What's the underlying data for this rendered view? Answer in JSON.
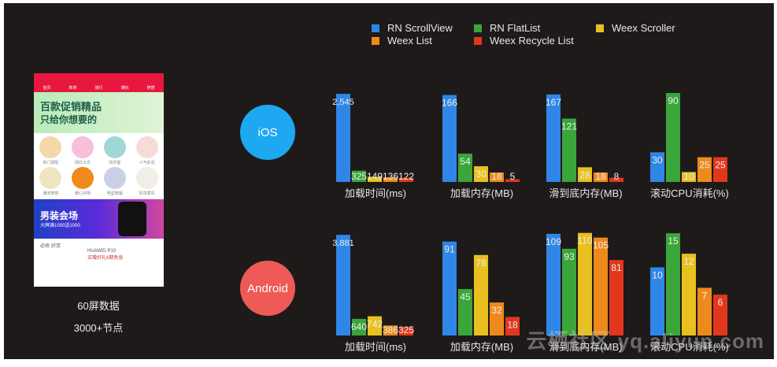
{
  "legend": [
    {
      "name": "RN ScrollView",
      "color": "#2f86e6"
    },
    {
      "name": "RN FlatList",
      "color": "#3aa63a"
    },
    {
      "name": "Weex Scroller",
      "color": "#e8c020"
    },
    {
      "name": "Weex List",
      "color": "#ee8a1c"
    },
    {
      "name": "Weex Recycle List",
      "color": "#e2371c"
    }
  ],
  "platforms": {
    "ios": {
      "label": "iOS",
      "color": "#1ea8f2"
    },
    "android": {
      "label": "Android",
      "color": "#ee5a56"
    }
  },
  "phone": {
    "nav": [
      "首页",
      "新奇",
      "旅行",
      "潮玩",
      "穿搭"
    ],
    "banner_title": "百款促销精品",
    "banner_sub": "只给你想要的",
    "categories": [
      "热门搭配",
      "网红大衣",
      "四件套",
      "人气彩妆",
      "潮流穿搭",
      "暖心好物",
      "明星鞋履",
      "彩妆香氛"
    ],
    "promo_title": "男装会场",
    "promo_sub": "大牌满1000送1000",
    "section": "必抢·好货",
    "product": "HUAWEI P10",
    "product_tag": "买赠好礼6期免息"
  },
  "captions": {
    "screens": "60屏数据",
    "nodes": "3000+节点"
  },
  "watermark": "云栖社区 yq.aliyun.com",
  "chart_data": [
    {
      "type": "bar",
      "platform": "iOS",
      "title": "加载时间(ms)",
      "values": [
        2545,
        325,
        149,
        136,
        122
      ],
      "labels": [
        "2,545",
        "325",
        "149",
        "136",
        "122"
      ],
      "ylim": [
        0,
        2800
      ]
    },
    {
      "type": "bar",
      "platform": "iOS",
      "title": "加载内存(MB)",
      "values": [
        166,
        54,
        30,
        18,
        5
      ],
      "labels": [
        "166",
        "54",
        "30",
        "18",
        "5"
      ],
      "ylim": [
        0,
        185
      ]
    },
    {
      "type": "bar",
      "platform": "iOS",
      "title": "滑到底内存(MB)",
      "values": [
        167,
        121,
        28,
        18,
        8
      ],
      "labels": [
        "167",
        "121",
        "28",
        "18",
        "8"
      ],
      "ylim": [
        0,
        185
      ]
    },
    {
      "type": "bar",
      "platform": "iOS",
      "title": "滚动CPU消耗(%)",
      "values": [
        30,
        90,
        10,
        25,
        25
      ],
      "labels": [
        "30",
        "90",
        "10",
        "25",
        "25"
      ],
      "ylim": [
        0,
        98
      ]
    },
    {
      "type": "bar",
      "platform": "Android",
      "title": "加载时间(ms)",
      "values": [
        3881,
        640,
        742,
        386,
        325
      ],
      "labels": [
        "3,881",
        "640",
        "742",
        "386",
        "325"
      ],
      "ylim": [
        0,
        4100
      ]
    },
    {
      "type": "bar",
      "platform": "Android",
      "title": "加载内存(MB)",
      "values": [
        91,
        45,
        78,
        32,
        18
      ],
      "labels": [
        "91",
        "45",
        "78",
        "32",
        "18"
      ],
      "ylim": [
        0,
        103
      ]
    },
    {
      "type": "bar",
      "platform": "Android",
      "title": "滑到底内存(MB)",
      "values": [
        109,
        93,
        110,
        105,
        81
      ],
      "labels": [
        "109",
        "93",
        "110",
        "105",
        "81"
      ],
      "ylim": [
        0,
        114
      ]
    },
    {
      "type": "bar",
      "platform": "Android",
      "title": "滚动CPU消耗(%)",
      "values": [
        10,
        15,
        12,
        7,
        6
      ],
      "labels": [
        "10",
        "15",
        "12",
        "7",
        "6"
      ],
      "ylim": [
        0,
        15.6
      ]
    }
  ]
}
